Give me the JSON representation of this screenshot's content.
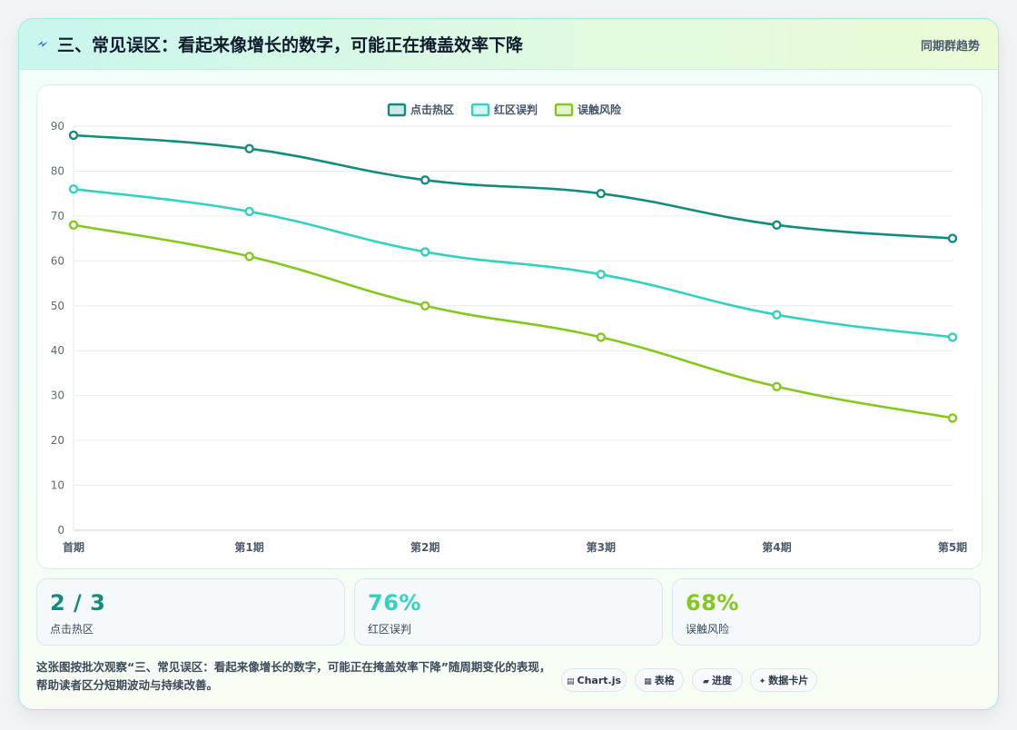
{
  "header": {
    "icon": "lightning-icon",
    "title": "三、常见误区：看起来像增长的数字，可能正在掩盖效率下降",
    "right_label": "同期群趋势"
  },
  "chart_data": {
    "type": "line",
    "categories": [
      "首期",
      "第1期",
      "第2期",
      "第3期",
      "第4期",
      "第5期"
    ],
    "series": [
      {
        "name": "点击热区",
        "values": [
          88,
          85,
          78,
          75,
          68,
          65
        ],
        "color": "#138c7e"
      },
      {
        "name": "红区误判",
        "values": [
          76,
          71,
          62,
          57,
          48,
          43
        ],
        "color": "#33d1bf"
      },
      {
        "name": "误触风险",
        "values": [
          68,
          61,
          50,
          43,
          32,
          25
        ],
        "color": "#84c81c"
      }
    ],
    "ylim": [
      0,
      90
    ],
    "yticks": [
      0,
      10,
      20,
      30,
      40,
      50,
      60,
      70,
      80,
      90
    ],
    "grid": true,
    "legend_position": "top-center",
    "smooth": true
  },
  "stats": [
    {
      "value": "2 / 3",
      "label": "点击热区",
      "color": "#138c7e"
    },
    {
      "value": "76%",
      "label": "红区误判",
      "color": "#33d1bf"
    },
    {
      "value": "68%",
      "label": "误触风险",
      "color": "#84c81c"
    }
  ],
  "footer": {
    "text": "这张图按批次观察“三、常见误区：看起来像增长的数字，可能正在掩盖效率下降”随周期变化的表现，帮助读者区分短期波动与持续改善。",
    "pills": [
      {
        "icon": "chart-icon",
        "glyph": "▤",
        "label": "Chart.js"
      },
      {
        "icon": "table-icon",
        "glyph": "▦",
        "label": "表格"
      },
      {
        "icon": "progress-icon",
        "glyph": "▰",
        "label": "进度"
      },
      {
        "icon": "sparkle-icon",
        "glyph": "✦",
        "label": "数据卡片"
      }
    ]
  }
}
